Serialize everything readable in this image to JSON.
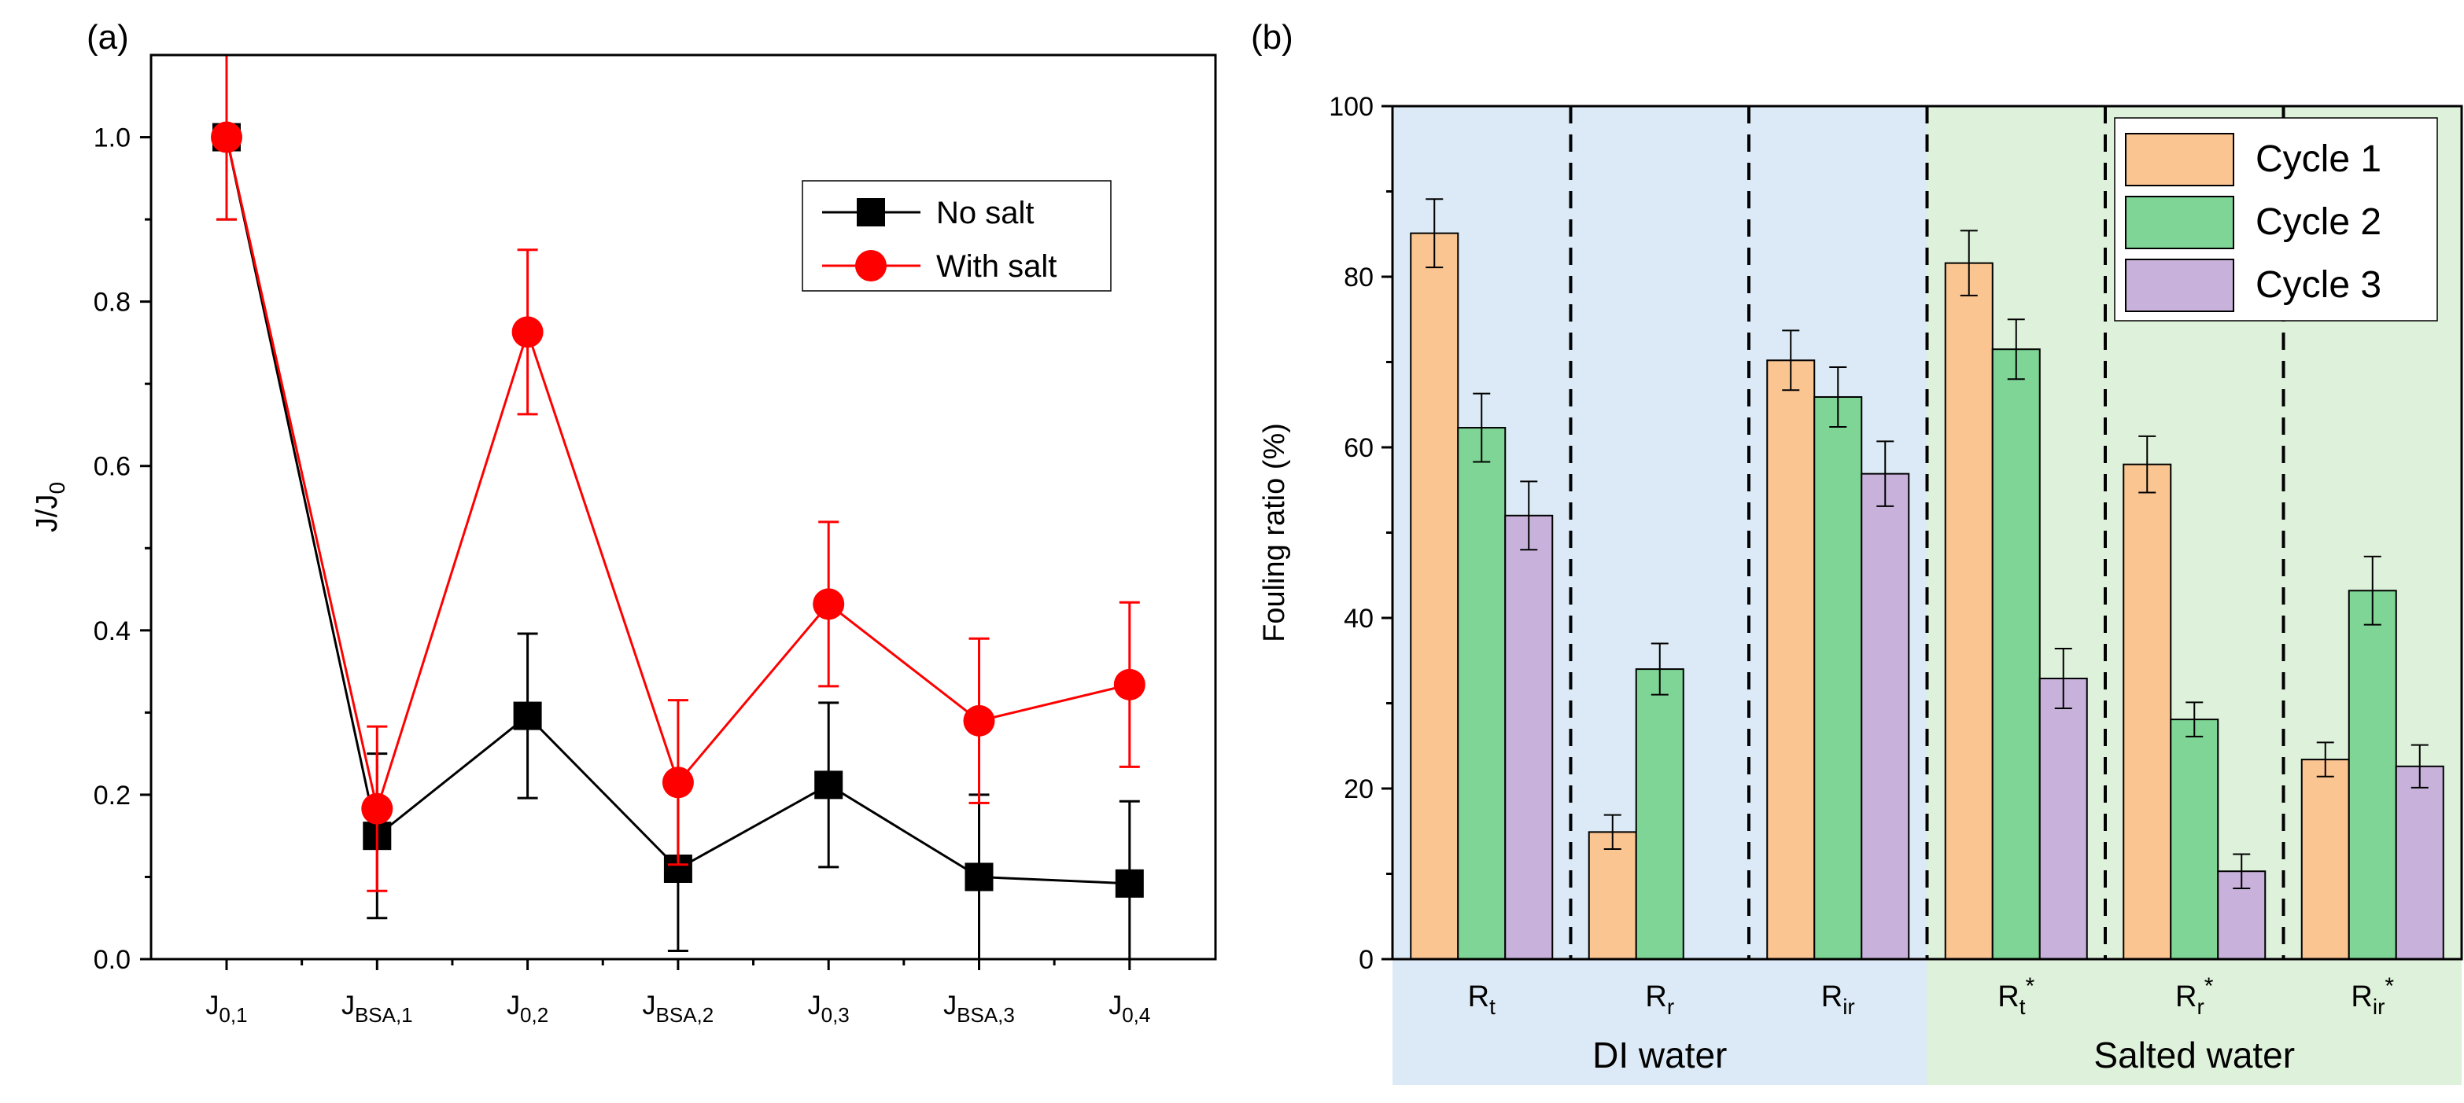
{
  "chart_data": [
    {
      "panel_label": "(a)",
      "type": "line",
      "ylabel": "J/J",
      "ylabel_sub": "0",
      "ylim": [
        0,
        1.1
      ],
      "yticks": [
        "0.0",
        "0.2",
        "0.4",
        "0.6",
        "0.8",
        "1.0"
      ],
      "categories": [
        {
          "main": "J",
          "sub": "0,1"
        },
        {
          "main": "J",
          "sub": "BSA,1"
        },
        {
          "main": "J",
          "sub": "0,2"
        },
        {
          "main": "J",
          "sub": "BSA,2"
        },
        {
          "main": "J",
          "sub": "0,3"
        },
        {
          "main": "J",
          "sub": "BSA,3"
        },
        {
          "main": "J",
          "sub": "0,4"
        }
      ],
      "series": [
        {
          "name": "No salt",
          "color": "#000000",
          "marker": "square",
          "values": [
            1.0,
            0.15,
            0.296,
            0.11,
            0.212,
            0.1,
            0.092
          ],
          "errors": [
            0.1,
            0.1,
            0.1,
            0.1,
            0.1,
            0.1,
            0.1
          ]
        },
        {
          "name": "With salt",
          "color": "#ff0000",
          "marker": "circle",
          "values": [
            1.0,
            0.183,
            0.763,
            0.215,
            0.432,
            0.29,
            0.334
          ],
          "errors": [
            0.1,
            0.1,
            0.1,
            0.1,
            0.1,
            0.1,
            0.1
          ]
        }
      ],
      "legend_position": "top-right"
    },
    {
      "panel_label": "(b)",
      "type": "bar",
      "ylabel": "Fouling ratio (%)",
      "ylim": [
        0,
        100
      ],
      "yticks": [
        "0",
        "20",
        "40",
        "60",
        "80",
        "100"
      ],
      "categories": [
        {
          "main": "R",
          "sub": "t",
          "sup": ""
        },
        {
          "main": "R",
          "sub": "r",
          "sup": ""
        },
        {
          "main": "R",
          "sub": "ir",
          "sup": ""
        },
        {
          "main": "R",
          "sub": "t",
          "sup": "*"
        },
        {
          "main": "R",
          "sub": "r",
          "sup": "*"
        },
        {
          "main": "R",
          "sub": "ir",
          "sup": "*"
        }
      ],
      "groups": [
        {
          "label": "DI water",
          "color": "#dbeaf6"
        },
        {
          "label": "Salted water",
          "color": "#def1da"
        }
      ],
      "series": [
        {
          "name": "Cycle 1",
          "color": "#fbc592",
          "values": [
            85.1,
            14.9,
            70.2,
            81.6,
            58.0,
            23.4
          ],
          "errors": [
            4.0,
            2.0,
            3.5,
            3.8,
            3.3,
            2.0
          ]
        },
        {
          "name": "Cycle 2",
          "color": "#7ed595",
          "values": [
            62.3,
            34.0,
            65.9,
            71.5,
            28.1,
            43.2
          ],
          "errors": [
            4.0,
            3.0,
            3.5,
            3.5,
            2.0,
            4.0
          ]
        },
        {
          "name": "Cycle 3",
          "color": "#c8b2dc",
          "values": [
            52.0,
            null,
            56.9,
            32.9,
            10.3,
            22.6
          ],
          "errors": [
            4.0,
            null,
            3.8,
            3.5,
            2.0,
            2.5
          ]
        }
      ],
      "legend_position": "top-right"
    }
  ]
}
